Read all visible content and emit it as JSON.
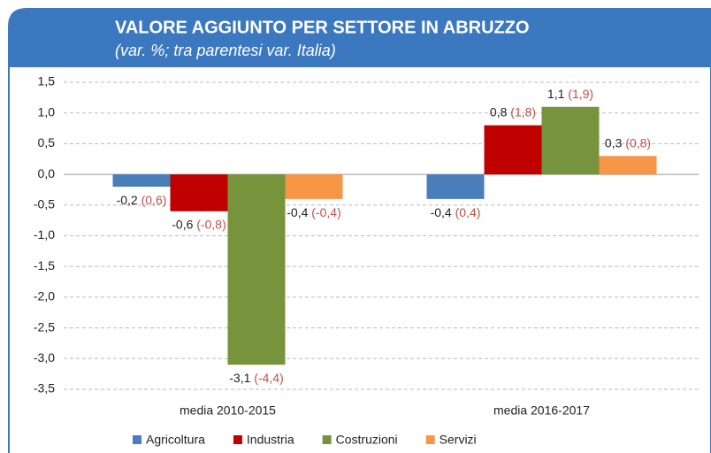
{
  "chart_data": {
    "type": "bar",
    "title": "VALORE AGGIUNTO PER SETTORE IN ABRUZZO",
    "subtitle": "(var. %;  tra parentesi var. Italia)",
    "categories": [
      "media 2010-2015",
      "media 2016-2017"
    ],
    "series": [
      {
        "name": "Agricoltura",
        "color": "#4a7ebb",
        "values": [
          -0.2,
          -0.4
        ],
        "value_labels": [
          "-0,2",
          "-0,4"
        ],
        "italy_labels": [
          "(0,6)",
          "(0,4)"
        ]
      },
      {
        "name": "Industria",
        "color": "#c00000",
        "values": [
          -0.6,
          0.8
        ],
        "value_labels": [
          "-0,6",
          "0,8"
        ],
        "italy_labels": [
          "(-0,8)",
          "(1,8)"
        ]
      },
      {
        "name": "Costruzioni",
        "color": "#77933c",
        "values": [
          -3.1,
          1.1
        ],
        "value_labels": [
          "-3,1",
          "1,1"
        ],
        "italy_labels": [
          "(-4,4)",
          "(1,9)"
        ]
      },
      {
        "name": "Servizi",
        "color": "#f79646",
        "values": [
          -0.4,
          0.3
        ],
        "value_labels": [
          "-0,4",
          "0,3"
        ],
        "italy_labels": [
          "(-0,4)",
          "(0,8)"
        ]
      }
    ],
    "ylim": [
      -3.5,
      1.5
    ],
    "yticks": [
      {
        "value": 1.5,
        "label": "1,5"
      },
      {
        "value": 1,
        "label": "1,0"
      },
      {
        "value": 0.5,
        "label": "0,5"
      },
      {
        "value": 0,
        "label": "0,0"
      },
      {
        "value": -0.5,
        "label": "-0,5"
      },
      {
        "value": -1,
        "label": "-1,0"
      },
      {
        "value": -1.5,
        "label": "-1,5"
      },
      {
        "value": -2,
        "label": "-2,0"
      },
      {
        "value": -2.5,
        "label": "-2,5"
      },
      {
        "value": -3,
        "label": "-3,0"
      },
      {
        "value": -3.5,
        "label": "-3,5"
      }
    ],
    "grid": true
  }
}
